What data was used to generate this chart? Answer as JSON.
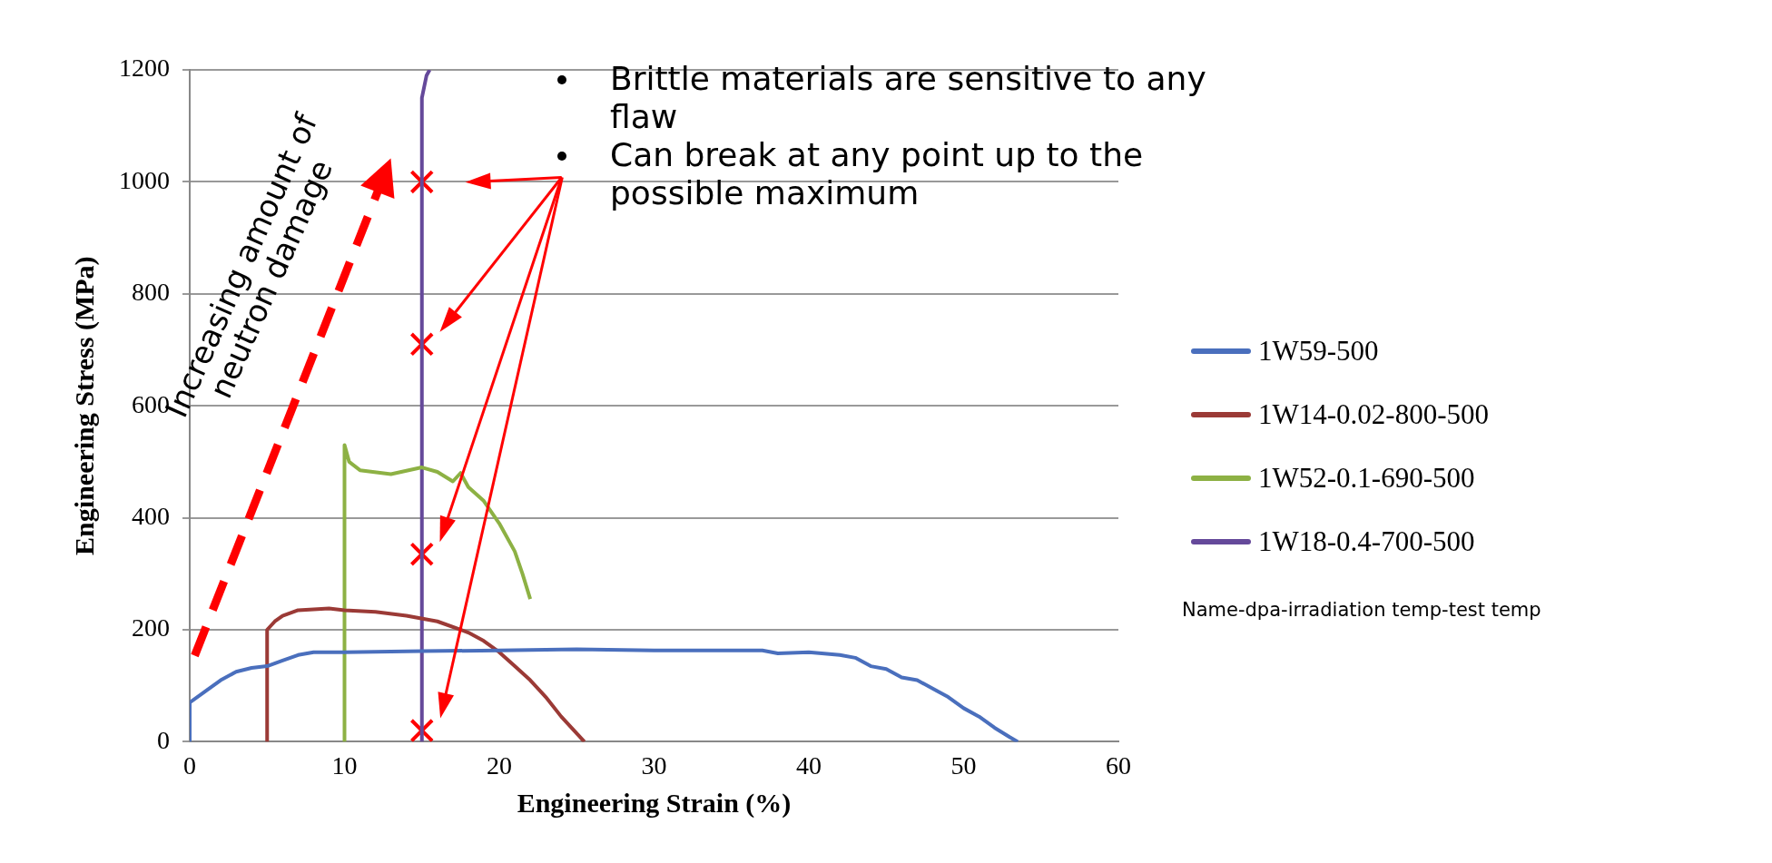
{
  "chart_data": {
    "type": "line",
    "xlabel": "Engineering Strain (%)",
    "ylabel": "Engineering Stress (MPa)",
    "legend_title": "Name-dpa-irradiation temp-test temp",
    "xlim": [
      0,
      60
    ],
    "xticks": [
      0,
      10,
      20,
      30,
      40,
      50,
      60
    ],
    "ylim": [
      0,
      1200
    ],
    "yticks": [
      0,
      200,
      400,
      600,
      800,
      1000,
      1200
    ],
    "grid": "y",
    "legend": "right",
    "marker": "none",
    "line_style": "solid",
    "annotations": [
      "Increasing amount of neutron damage",
      "Brittle materials are sensitive to any flaw",
      "Can break at any point up to the possible maximum"
    ],
    "series": [
      {
        "name": "1W59-500",
        "color": "#4a6fbd",
        "x": [
          0,
          0,
          1,
          2,
          3,
          4,
          5,
          6,
          7,
          8,
          10,
          15,
          20,
          25,
          30,
          35,
          37,
          38,
          40,
          42,
          43,
          44,
          45,
          46,
          47,
          48,
          49,
          50,
          51,
          52,
          53,
          53.5
        ],
        "values": [
          0,
          70,
          90,
          110,
          125,
          132,
          135,
          145,
          155,
          160,
          160,
          162,
          163,
          165,
          163,
          163,
          163,
          158,
          160,
          155,
          150,
          135,
          130,
          115,
          110,
          95,
          80,
          60,
          45,
          25,
          8,
          0
        ]
      },
      {
        "name": "1W14-0.02-800-500",
        "color": "#9b3a36",
        "x": [
          5,
          5,
          5.5,
          6,
          7,
          9,
          10,
          12,
          14,
          16,
          18,
          19,
          20,
          21,
          22,
          23,
          24,
          25,
          25.5
        ],
        "values": [
          0,
          200,
          215,
          225,
          235,
          238,
          235,
          232,
          225,
          215,
          195,
          180,
          160,
          135,
          110,
          80,
          45,
          15,
          0
        ]
      },
      {
        "name": "1W52-0.1-690-500",
        "color": "#8db144",
        "x": [
          10,
          10,
          10.3,
          11,
          13,
          15,
          16,
          17,
          17.5,
          18,
          19,
          20,
          21,
          21.5,
          22
        ],
        "values": [
          0,
          530,
          500,
          485,
          478,
          490,
          482,
          465,
          480,
          455,
          430,
          390,
          340,
          300,
          255
        ]
      },
      {
        "name": "1W18-0.4-700-500",
        "color": "#65499a",
        "x": [
          15,
          15,
          15.3,
          15.5
        ],
        "values": [
          0,
          1150,
          1190,
          1200
        ]
      },
      {
        "type": "scatter",
        "marker": "cross",
        "color": "#ff0000",
        "x": [
          15,
          15,
          15,
          15
        ],
        "values": [
          1000,
          710,
          335,
          20
        ]
      }
    ]
  }
}
